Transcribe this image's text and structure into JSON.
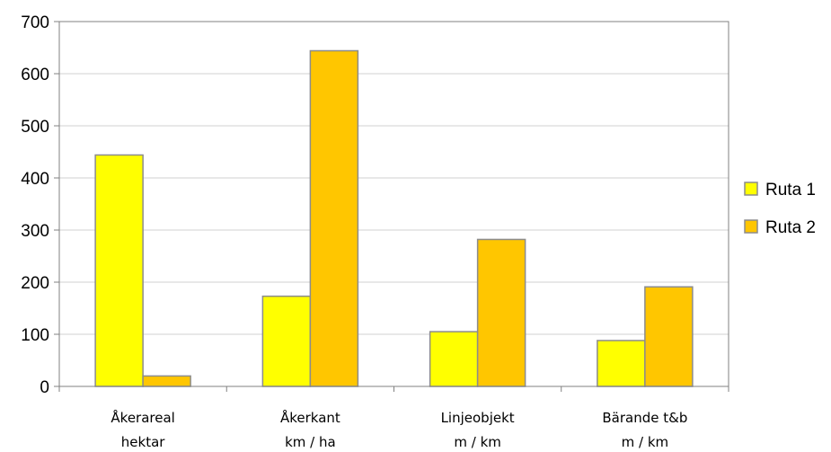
{
  "chart_data": {
    "type": "bar",
    "title": "",
    "xlabel": "",
    "ylabel": "",
    "ylim": [
      0,
      700
    ],
    "yticks": [
      0,
      100,
      200,
      300,
      400,
      500,
      600,
      700
    ],
    "grid": true,
    "legend_position": "right",
    "categories": [
      {
        "line1": "Åkerareal",
        "line2": "hektar"
      },
      {
        "line1": "Åkerkant",
        "line2": "km / ha"
      },
      {
        "line1": "Linjeobjekt",
        "line2": "m / km"
      },
      {
        "line1": "Bärande t&b",
        "line2": "m / km"
      }
    ],
    "series": [
      {
        "name": "Ruta 1",
        "color": "#FFFF00",
        "values": [
          444,
          173,
          105,
          88
        ]
      },
      {
        "name": "Ruta 2",
        "color": "#FFC600",
        "values": [
          20,
          644,
          282,
          191
        ]
      }
    ]
  }
}
